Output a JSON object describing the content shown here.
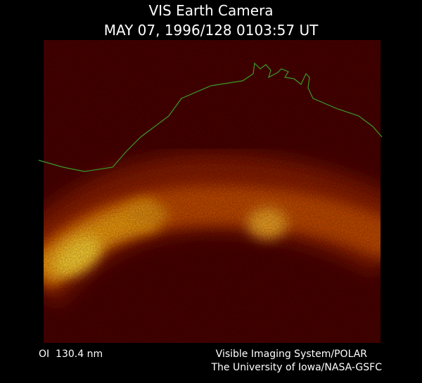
{
  "title": "VIS Earth Camera",
  "timestamp": "MAY 07, 1996/128 0103:57 UT",
  "filter": "OI  130.4 nm",
  "credit": [
    "Visible Imaging System/POLAR",
    "The University of Iowa/NASA-GSFC"
  ]
}
